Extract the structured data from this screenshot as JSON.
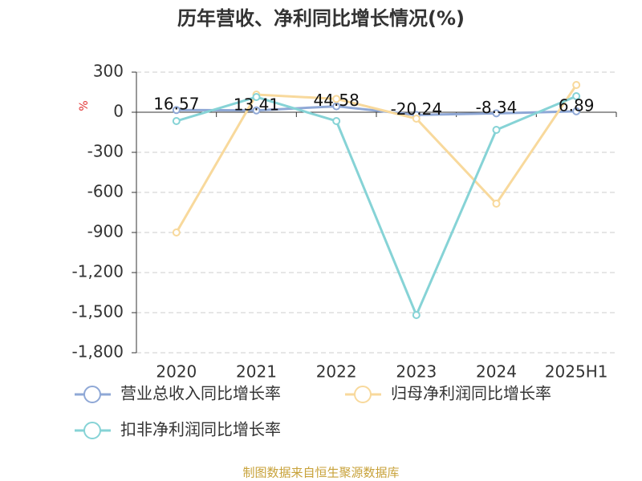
{
  "chart_data": {
    "type": "line",
    "title": "历年营收、净利同比增长情况(%)",
    "y_label": "%",
    "categories": [
      "2020",
      "2021",
      "2022",
      "2023",
      "2024",
      "2025H1"
    ],
    "series": [
      {
        "name": "营业总收入同比增长率",
        "color": "#8fa8d6",
        "values": [
          16.57,
          13.41,
          44.58,
          -20.24,
          -8.34,
          6.89
        ],
        "labels": true
      },
      {
        "name": "归母净利润同比增长率",
        "color": "#f8d99c",
        "values": [
          -900,
          132,
          100,
          -48,
          -684,
          204
        ]
      },
      {
        "name": "扣非净利润同比增长率",
        "color": "#86d3d6",
        "values": [
          -66,
          114,
          -66,
          -1518,
          -132,
          120
        ]
      }
    ],
    "ylim": [
      -1800,
      300
    ],
    "yticks": [
      300,
      0,
      -300,
      -600,
      -900,
      {
        "value": -1200,
        "label": "-1,200"
      },
      {
        "value": -1500,
        "label": "-1,500"
      },
      {
        "value": -1800,
        "label": "-1,800"
      }
    ],
    "grid": true,
    "footer": "制图数据来自恒生聚源数据库"
  }
}
